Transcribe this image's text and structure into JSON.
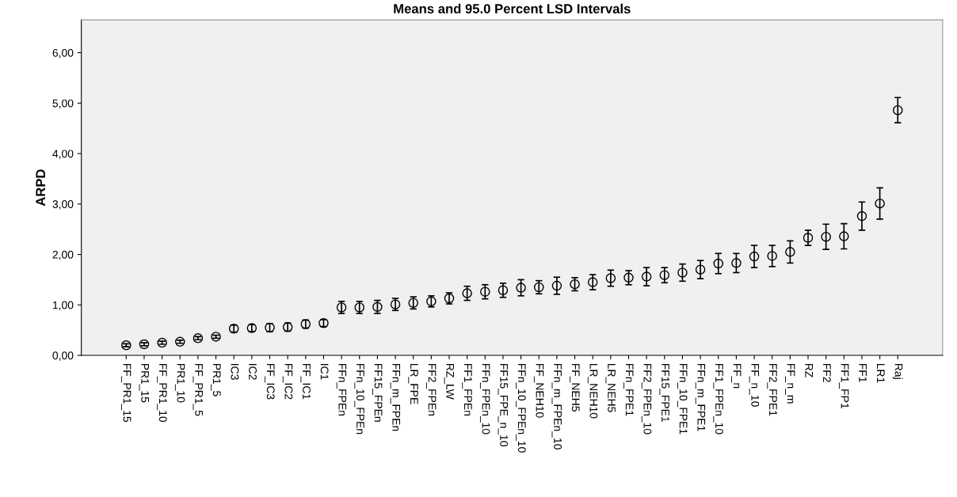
{
  "chart_data": {
    "type": "scatter",
    "title": "Means and 95.0 Percent LSD Intervals",
    "ylabel": "ARPD",
    "categories": [
      "FF_PR1_15",
      "PR1_15",
      "FF_PR1_10",
      "PR1_10",
      "FF_PR1_5",
      "PR1_5",
      "IC3",
      "IC2",
      "FF_IC3",
      "FF_IC2",
      "FF_IC1",
      "IC1",
      "FFn_FPEn",
      "FFn_10_FPEn",
      "FF15_FPEn",
      "FFn_m_FPEn",
      "LR_FPE",
      "FF2_FPEn",
      "RZ_LW",
      "FF1_FPEn",
      "FFn_FPEn_10",
      "FF15_FPE_n_10",
      "FFn_10_FPEn_10",
      "FF_NEH10",
      "FFn_m_FPEn_10",
      "FF_NEH5",
      "LR_NEH10",
      "LR_NEH5",
      "FFn_FPE1",
      "FF2_FPEn_10",
      "FF15_FPE1",
      "FFn_10_FPE1",
      "FFn_m_FPE1",
      "FF1_FPEn_10",
      "FF_n",
      "FF_n_10",
      "FF2_FPE1",
      "FF_n_m",
      "RZ",
      "FF2",
      "FF1_FP1",
      "FF1",
      "LR1",
      "Raj"
    ],
    "values": [
      0.2,
      0.22,
      0.25,
      0.27,
      0.34,
      0.37,
      0.53,
      0.54,
      0.55,
      0.56,
      0.62,
      0.64,
      0.95,
      0.95,
      0.96,
      1.01,
      1.04,
      1.07,
      1.13,
      1.23,
      1.26,
      1.29,
      1.34,
      1.35,
      1.38,
      1.41,
      1.45,
      1.53,
      1.54,
      1.56,
      1.59,
      1.64,
      1.7,
      1.82,
      1.83,
      1.96,
      1.97,
      2.05,
      2.33,
      2.35,
      2.36,
      2.76,
      3.01,
      4.86
    ],
    "errors": [
      0.03,
      0.03,
      0.03,
      0.03,
      0.03,
      0.03,
      0.07,
      0.07,
      0.08,
      0.08,
      0.08,
      0.07,
      0.12,
      0.12,
      0.13,
      0.12,
      0.12,
      0.11,
      0.11,
      0.14,
      0.14,
      0.14,
      0.16,
      0.13,
      0.17,
      0.13,
      0.15,
      0.16,
      0.14,
      0.18,
      0.15,
      0.17,
      0.18,
      0.2,
      0.19,
      0.22,
      0.21,
      0.22,
      0.15,
      0.25,
      0.25,
      0.28,
      0.31,
      0.25
    ],
    "color": "#000000",
    "marker": "circle",
    "ylim": [
      0,
      6.65
    ],
    "yticks": [
      {
        "value": 0,
        "label": "0,00"
      },
      {
        "value": 1,
        "label": "1,00"
      },
      {
        "value": 2,
        "label": "2,00"
      },
      {
        "value": 3,
        "label": "3,00"
      },
      {
        "value": 4,
        "label": "4,00"
      },
      {
        "value": 5,
        "label": "5,00"
      },
      {
        "value": 6,
        "label": "6,00"
      }
    ],
    "grid": false
  }
}
